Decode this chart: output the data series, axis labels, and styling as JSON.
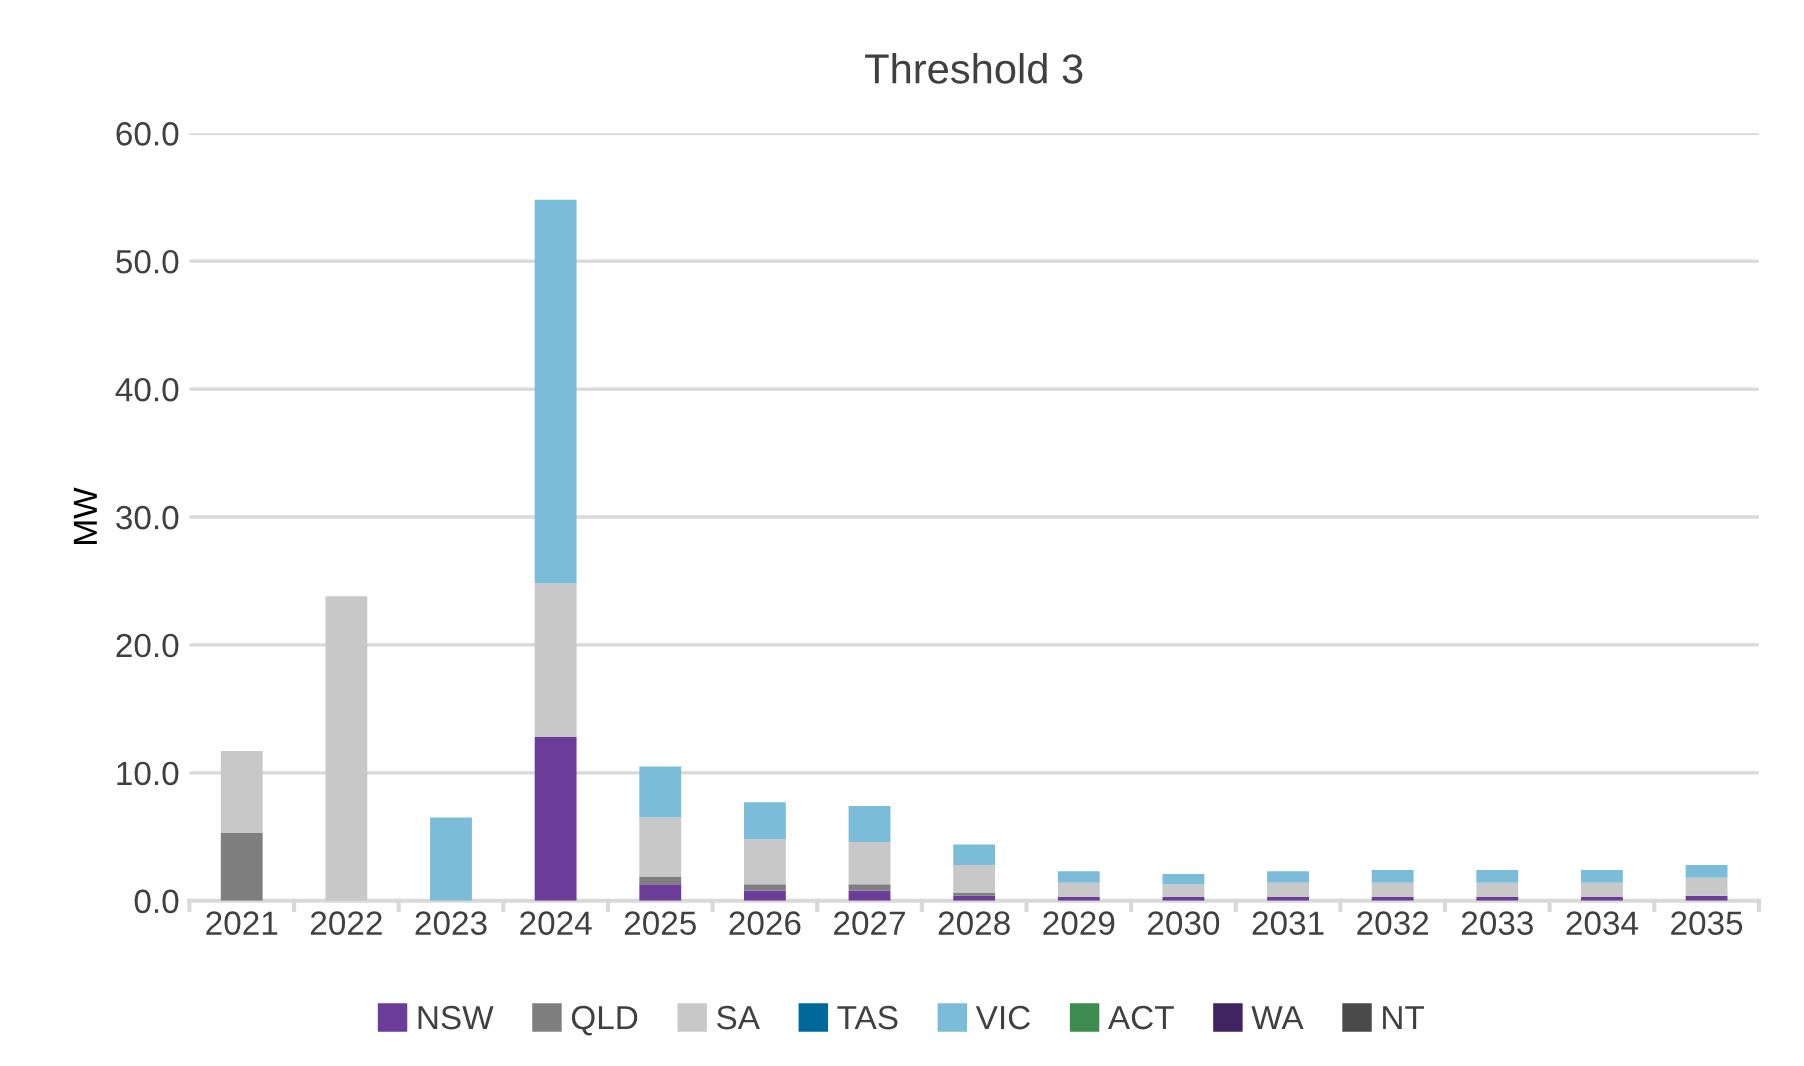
{
  "chart_data": {
    "type": "bar",
    "title": "Threshold 3",
    "ylabel": "MW",
    "stacked": true,
    "grid": "y",
    "legend": "bottom",
    "categories": [
      "2021",
      "2022",
      "2023",
      "2024",
      "2025",
      "2026",
      "2027",
      "2028",
      "2029",
      "2030",
      "2031",
      "2032",
      "2033",
      "2034",
      "2035"
    ],
    "ylim": [
      0,
      60
    ],
    "yticks": [
      {
        "value": 0,
        "label": "0.0"
      },
      {
        "value": 10,
        "label": "10.0"
      },
      {
        "value": 20,
        "label": "20.0"
      },
      {
        "value": 30,
        "label": "30.0"
      },
      {
        "value": 40,
        "label": "40.0"
      },
      {
        "value": 50,
        "label": "50.0"
      },
      {
        "value": 60,
        "label": "60.0"
      }
    ],
    "series": [
      {
        "name": "NSW",
        "color": "#6b3d99",
        "values": [
          0,
          0,
          0,
          12.8,
          1.3,
          0.8,
          0.8,
          0.4,
          0.3,
          0.3,
          0.3,
          0.3,
          0.3,
          0.3,
          0.4
        ]
      },
      {
        "name": "QLD",
        "color": "#7f7f7f",
        "values": [
          5.3,
          0,
          0,
          0,
          0.6,
          0.5,
          0.5,
          0.2,
          0,
          0,
          0,
          0,
          0,
          0,
          0
        ]
      },
      {
        "name": "SA",
        "color": "#c8c8c8",
        "values": [
          6.4,
          23.8,
          0,
          12.0,
          4.6,
          3.5,
          3.3,
          2.2,
          1.1,
          1.0,
          1.1,
          1.1,
          1.1,
          1.1,
          1.4
        ]
      },
      {
        "name": "TAS",
        "color": "#00699b",
        "values": [
          0,
          0,
          0,
          0,
          0,
          0,
          0,
          0,
          0,
          0,
          0,
          0,
          0,
          0,
          0
        ]
      },
      {
        "name": "VIC",
        "color": "#7bbcd8",
        "values": [
          0,
          0,
          6.5,
          30.0,
          4.0,
          2.9,
          2.8,
          1.6,
          0.9,
          0.8,
          0.9,
          1.0,
          1.0,
          1.0,
          1.0
        ]
      },
      {
        "name": "ACT",
        "color": "#3e8c4f",
        "values": [
          0,
          0,
          0,
          0,
          0,
          0,
          0,
          0,
          0,
          0,
          0,
          0,
          0,
          0,
          0
        ]
      },
      {
        "name": "WA",
        "color": "#3f2461",
        "values": [
          0,
          0,
          0,
          0,
          0,
          0,
          0,
          0,
          0,
          0,
          0,
          0,
          0,
          0,
          0
        ]
      },
      {
        "name": "NT",
        "color": "#4a4a4a",
        "values": [
          0,
          0,
          0,
          0,
          0,
          0,
          0,
          0,
          0,
          0,
          0,
          0,
          0,
          0,
          0
        ]
      }
    ]
  }
}
